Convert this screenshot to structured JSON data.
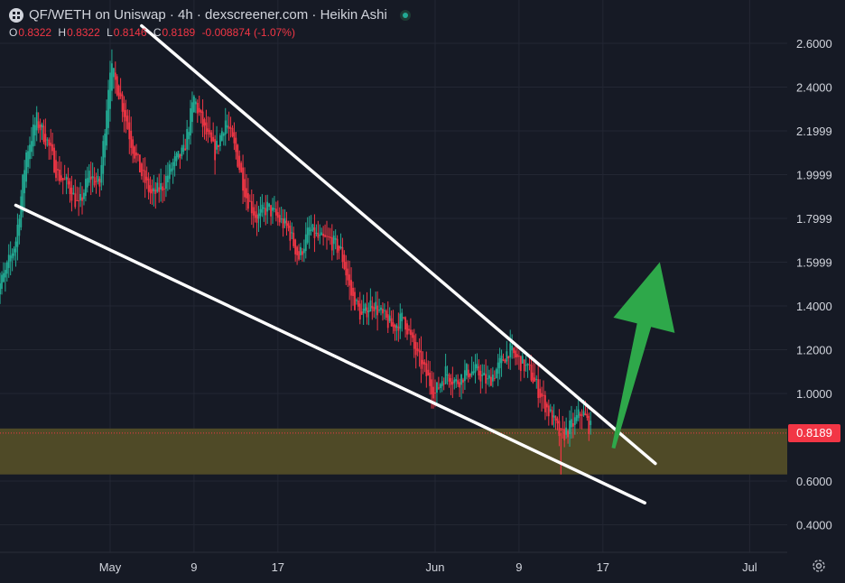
{
  "header": {
    "title": "QF/WETH on Uniswap · 4h · dexscreener.com · Heikin Ashi",
    "ohlc": [
      {
        "k": "O",
        "v": "0.8322"
      },
      {
        "k": "H",
        "v": "0.8322"
      },
      {
        "k": "L",
        "v": "0.8146"
      },
      {
        "k": "C",
        "v": "0.8189"
      },
      {
        "k": "",
        "v": "-0.008874 (-1.07%)"
      }
    ]
  },
  "last_price_label": "0.8189",
  "colors": {
    "background": "#161a25",
    "up": "#22ab94",
    "down": "#f23645",
    "zone": "#4f4a27",
    "trendline": "#ffffff",
    "arrow": "#2ea84a"
  },
  "chart_data": {
    "type": "candlestick",
    "style": "Heikin Ashi",
    "interval": "4h",
    "x_range": [
      "2025-04-20",
      "2025-07-03"
    ],
    "ylim": [
      0.3,
      2.7
    ],
    "y_ticks": [
      {
        "value": 2.6,
        "label": "2.6000"
      },
      {
        "value": 2.4,
        "label": "2.4000"
      },
      {
        "value": 2.2,
        "label": "2.1999"
      },
      {
        "value": 2.0,
        "label": "1.9999"
      },
      {
        "value": 1.8,
        "label": "1.7999"
      },
      {
        "value": 1.6,
        "label": "1.5999"
      },
      {
        "value": 1.4,
        "label": "1.4000"
      },
      {
        "value": 1.2,
        "label": "1.2000"
      },
      {
        "value": 1.0,
        "label": "1.0000"
      },
      {
        "value": 0.8,
        "label": ""
      },
      {
        "value": 0.6,
        "label": "0.6000"
      },
      {
        "value": 0.4,
        "label": "0.4000"
      }
    ],
    "x_ticks": [
      {
        "date": "2025-05-01",
        "label": "May"
      },
      {
        "date": "2025-05-09",
        "label": "9"
      },
      {
        "date": "2025-05-17",
        "label": "17"
      },
      {
        "date": "2025-06-01",
        "label": "Jun"
      },
      {
        "date": "2025-06-09",
        "label": "9"
      },
      {
        "date": "2025-06-17",
        "label": "17"
      },
      {
        "date": "2025-07-01",
        "label": "Jul"
      }
    ],
    "price_path": [
      [
        "2025-04-20",
        1.45
      ],
      [
        "2025-04-21",
        1.55
      ],
      [
        "2025-04-22",
        1.7
      ],
      [
        "2025-04-23",
        2.1
      ],
      [
        "2025-04-24",
        2.25
      ],
      [
        "2025-04-25",
        2.15
      ],
      [
        "2025-04-26",
        2.0
      ],
      [
        "2025-04-27",
        1.95
      ],
      [
        "2025-04-28",
        1.85
      ],
      [
        "2025-04-29",
        2.0
      ],
      [
        "2025-04-30",
        1.95
      ],
      [
        "2025-05-01",
        2.5
      ],
      [
        "2025-05-02",
        2.35
      ],
      [
        "2025-05-03",
        2.15
      ],
      [
        "2025-05-04",
        2.0
      ],
      [
        "2025-05-05",
        1.9
      ],
      [
        "2025-05-06",
        1.95
      ],
      [
        "2025-05-07",
        2.05
      ],
      [
        "2025-05-08",
        2.1
      ],
      [
        "2025-05-09",
        2.35
      ],
      [
        "2025-05-10",
        2.2
      ],
      [
        "2025-05-11",
        2.1
      ],
      [
        "2025-05-12",
        2.25
      ],
      [
        "2025-05-13",
        2.1
      ],
      [
        "2025-05-14",
        1.9
      ],
      [
        "2025-05-15",
        1.8
      ],
      [
        "2025-05-16",
        1.85
      ],
      [
        "2025-05-17",
        1.8
      ],
      [
        "2025-05-18",
        1.75
      ],
      [
        "2025-05-19",
        1.62
      ],
      [
        "2025-05-20",
        1.75
      ],
      [
        "2025-05-21",
        1.7
      ],
      [
        "2025-05-22",
        1.7
      ],
      [
        "2025-05-23",
        1.65
      ],
      [
        "2025-05-24",
        1.45
      ],
      [
        "2025-05-25",
        1.35
      ],
      [
        "2025-05-26",
        1.42
      ],
      [
        "2025-05-27",
        1.35
      ],
      [
        "2025-05-28",
        1.3
      ],
      [
        "2025-05-29",
        1.35
      ],
      [
        "2025-05-30",
        1.2
      ],
      [
        "2025-05-31",
        1.1
      ],
      [
        "2025-06-01",
        1.0
      ],
      [
        "2025-06-02",
        1.1
      ],
      [
        "2025-06-03",
        1.05
      ],
      [
        "2025-06-04",
        1.1
      ],
      [
        "2025-06-05",
        1.1
      ],
      [
        "2025-06-06",
        1.05
      ],
      [
        "2025-06-07",
        1.12
      ],
      [
        "2025-06-08",
        1.2
      ],
      [
        "2025-06-09",
        1.15
      ],
      [
        "2025-06-10",
        1.1
      ],
      [
        "2025-06-11",
        1.0
      ],
      [
        "2025-06-12",
        0.9
      ],
      [
        "2025-06-13",
        0.8
      ],
      [
        "2025-06-14",
        0.85
      ],
      [
        "2025-06-15",
        0.92
      ],
      [
        "2025-06-16",
        0.82
      ]
    ],
    "last_price": 0.8189,
    "support_zone": [
      0.63,
      0.84
    ],
    "trendlines": [
      {
        "name": "upper",
        "from": [
          "2025-05-04",
          2.68
        ],
        "to": [
          "2025-06-22",
          0.68
        ]
      },
      {
        "name": "lower",
        "from": [
          "2025-04-22",
          1.86
        ],
        "to": [
          "2025-06-21",
          0.5
        ]
      }
    ],
    "annotation_arrow": {
      "from": [
        "2025-06-18",
        0.75
      ],
      "to": [
        "2025-06-22",
        1.6
      ]
    }
  }
}
